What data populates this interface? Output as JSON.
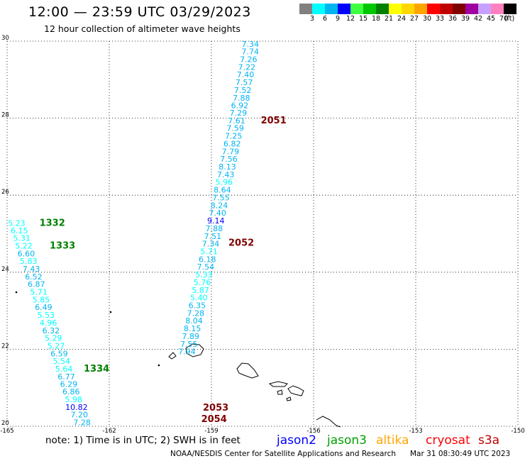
{
  "title": "12:00 — 23:59 UTC 03/29/2023",
  "subtitle": "12 hour collection of altimeter wave heights",
  "color_scale": {
    "unit": "(ft)",
    "bins": [
      {
        "label": "3",
        "color": "#808080"
      },
      {
        "label": "6",
        "color": "#00ffff"
      },
      {
        "label": "9",
        "color": "#00b4f0"
      },
      {
        "label": "12",
        "color": "#0000ff"
      },
      {
        "label": "15",
        "color": "#40ff40"
      },
      {
        "label": "18",
        "color": "#00c800"
      },
      {
        "label": "21",
        "color": "#008000"
      },
      {
        "label": "24",
        "color": "#ffff00"
      },
      {
        "label": "27",
        "color": "#ffd700"
      },
      {
        "label": "30",
        "color": "#ffa500"
      },
      {
        "label": "33",
        "color": "#ff0000"
      },
      {
        "label": "36",
        "color": "#c00000"
      },
      {
        "label": "39",
        "color": "#800000"
      },
      {
        "label": "42",
        "color": "#a000a0"
      },
      {
        "label": "45",
        "color": "#c8a0ff"
      },
      {
        "label": "70",
        "color": "#ff80c0"
      },
      {
        "label": "",
        "color": "#000000"
      }
    ]
  },
  "axes": {
    "lon_ticks": [
      "-165",
      "-162",
      "-159",
      "-156",
      "-153",
      "-150"
    ],
    "lat_ticks": [
      "20",
      "22",
      "24",
      "26",
      "28",
      "30"
    ],
    "lon_range": [
      -165,
      -150
    ],
    "lat_range": [
      20,
      30
    ],
    "grid": true
  },
  "tracks": [
    {
      "id": "west",
      "points": [
        {
          "lon": -164.72,
          "lat": 25.28,
          "v": "5.23",
          "c": "#00ffff"
        },
        {
          "lon": -164.64,
          "lat": 25.08,
          "v": "6.15",
          "c": "#00ffff"
        },
        {
          "lon": -164.57,
          "lat": 24.89,
          "v": "5.31",
          "c": "#00ffff"
        },
        {
          "lon": -164.51,
          "lat": 24.69,
          "v": "5.22",
          "c": "#00ffff"
        },
        {
          "lon": -164.44,
          "lat": 24.48,
          "v": "6.60",
          "c": "#00b4f0"
        },
        {
          "lon": -164.37,
          "lat": 24.29,
          "v": "5.83",
          "c": "#00ffff"
        },
        {
          "lon": -164.29,
          "lat": 24.09,
          "v": "7.43",
          "c": "#00b4f0"
        },
        {
          "lon": -164.22,
          "lat": 23.89,
          "v": "6.52",
          "c": "#00b4f0"
        },
        {
          "lon": -164.14,
          "lat": 23.69,
          "v": "6.87",
          "c": "#00b4f0"
        },
        {
          "lon": -164.07,
          "lat": 23.49,
          "v": "5.71",
          "c": "#00ffff"
        },
        {
          "lon": -164.0,
          "lat": 23.29,
          "v": "5.85",
          "c": "#00ffff"
        },
        {
          "lon": -163.93,
          "lat": 23.09,
          "v": "6.49",
          "c": "#00b4f0"
        },
        {
          "lon": -163.86,
          "lat": 22.89,
          "v": "5.53",
          "c": "#00ffff"
        },
        {
          "lon": -163.79,
          "lat": 22.69,
          "v": "4.96",
          "c": "#00ffff"
        },
        {
          "lon": -163.71,
          "lat": 22.49,
          "v": "6.32",
          "c": "#00b4f0"
        },
        {
          "lon": -163.64,
          "lat": 22.29,
          "v": "5.29",
          "c": "#00ffff"
        },
        {
          "lon": -163.56,
          "lat": 22.09,
          "v": "5.27",
          "c": "#00ffff"
        },
        {
          "lon": -163.47,
          "lat": 21.89,
          "v": "6.59",
          "c": "#00b4f0"
        },
        {
          "lon": -163.4,
          "lat": 21.69,
          "v": "5.54",
          "c": "#00ffff"
        },
        {
          "lon": -163.33,
          "lat": 21.49,
          "v": "5.64",
          "c": "#00ffff"
        },
        {
          "lon": -163.26,
          "lat": 21.29,
          "v": "6.77",
          "c": "#00b4f0"
        },
        {
          "lon": -163.19,
          "lat": 21.1,
          "v": "6.29",
          "c": "#00b4f0"
        },
        {
          "lon": -163.12,
          "lat": 20.9,
          "v": "6.86",
          "c": "#00b4f0"
        },
        {
          "lon": -163.05,
          "lat": 20.7,
          "v": "5.98",
          "c": "#00ffff"
        },
        {
          "lon": -162.96,
          "lat": 20.5,
          "v": "10.82",
          "c": "#0000ff"
        },
        {
          "lon": -162.88,
          "lat": 20.3,
          "v": "7.20",
          "c": "#00b4f0"
        },
        {
          "lon": -162.8,
          "lat": 20.1,
          "v": "7.28",
          "c": "#00b4f0"
        }
      ]
    },
    {
      "id": "east",
      "points": [
        {
          "lon": -157.86,
          "lat": 29.93,
          "v": "7.34",
          "c": "#00b4f0"
        },
        {
          "lon": -157.86,
          "lat": 29.73,
          "v": "7.74",
          "c": "#00b4f0"
        },
        {
          "lon": -157.91,
          "lat": 29.53,
          "v": "7.26",
          "c": "#00b4f0"
        },
        {
          "lon": -157.96,
          "lat": 29.33,
          "v": "7.22",
          "c": "#00b4f0"
        },
        {
          "lon": -158.0,
          "lat": 29.13,
          "v": "7.40",
          "c": "#00b4f0"
        },
        {
          "lon": -158.04,
          "lat": 28.93,
          "v": "7.57",
          "c": "#00b4f0"
        },
        {
          "lon": -158.08,
          "lat": 28.73,
          "v": "7.52",
          "c": "#00b4f0"
        },
        {
          "lon": -158.12,
          "lat": 28.53,
          "v": "7.88",
          "c": "#00b4f0"
        },
        {
          "lon": -158.17,
          "lat": 28.33,
          "v": "6.92",
          "c": "#00b4f0"
        },
        {
          "lon": -158.21,
          "lat": 28.14,
          "v": "7.29",
          "c": "#00b4f0"
        },
        {
          "lon": -158.26,
          "lat": 27.94,
          "v": "7.61",
          "c": "#00b4f0"
        },
        {
          "lon": -158.3,
          "lat": 27.74,
          "v": "7.59",
          "c": "#00b4f0"
        },
        {
          "lon": -158.35,
          "lat": 27.54,
          "v": "7.25",
          "c": "#00b4f0"
        },
        {
          "lon": -158.39,
          "lat": 27.34,
          "v": "6.82",
          "c": "#00b4f0"
        },
        {
          "lon": -158.44,
          "lat": 27.14,
          "v": "7.79",
          "c": "#00b4f0"
        },
        {
          "lon": -158.49,
          "lat": 26.94,
          "v": "7.56",
          "c": "#00b4f0"
        },
        {
          "lon": -158.53,
          "lat": 26.74,
          "v": "8.13",
          "c": "#00b4f0"
        },
        {
          "lon": -158.58,
          "lat": 26.54,
          "v": "7.43",
          "c": "#00b4f0"
        },
        {
          "lon": -158.63,
          "lat": 26.34,
          "v": "5.96",
          "c": "#00ffff"
        },
        {
          "lon": -158.68,
          "lat": 26.14,
          "v": "8.64",
          "c": "#00b4f0"
        },
        {
          "lon": -158.72,
          "lat": 25.94,
          "v": "7.55",
          "c": "#00b4f0"
        },
        {
          "lon": -158.77,
          "lat": 25.74,
          "v": "8.24",
          "c": "#00b4f0"
        },
        {
          "lon": -158.82,
          "lat": 25.54,
          "v": "7.40",
          "c": "#00b4f0"
        },
        {
          "lon": -158.87,
          "lat": 25.34,
          "v": "9.14",
          "c": "#0000ff"
        },
        {
          "lon": -158.92,
          "lat": 25.14,
          "v": "7.88",
          "c": "#00b4f0"
        },
        {
          "lon": -158.96,
          "lat": 24.94,
          "v": "7.51",
          "c": "#00b4f0"
        },
        {
          "lon": -159.02,
          "lat": 24.74,
          "v": "7.34",
          "c": "#00b4f0"
        },
        {
          "lon": -159.07,
          "lat": 24.54,
          "v": "5.71",
          "c": "#00ffff"
        },
        {
          "lon": -159.12,
          "lat": 24.34,
          "v": "6.18",
          "c": "#00b4f0"
        },
        {
          "lon": -159.17,
          "lat": 24.14,
          "v": "7.54",
          "c": "#00b4f0"
        },
        {
          "lon": -159.22,
          "lat": 23.94,
          "v": "5.33",
          "c": "#00ffff"
        },
        {
          "lon": -159.27,
          "lat": 23.74,
          "v": "5.76",
          "c": "#00ffff"
        },
        {
          "lon": -159.32,
          "lat": 23.54,
          "v": "5.87",
          "c": "#00ffff"
        },
        {
          "lon": -159.37,
          "lat": 23.34,
          "v": "5.40",
          "c": "#00ffff"
        },
        {
          "lon": -159.42,
          "lat": 23.14,
          "v": "6.35",
          "c": "#00b4f0"
        },
        {
          "lon": -159.46,
          "lat": 22.94,
          "v": "7.28",
          "c": "#00b4f0"
        },
        {
          "lon": -159.51,
          "lat": 22.74,
          "v": "8.04",
          "c": "#00b4f0"
        },
        {
          "lon": -159.56,
          "lat": 22.54,
          "v": "8.15",
          "c": "#00b4f0"
        },
        {
          "lon": -159.61,
          "lat": 22.34,
          "v": "7.89",
          "c": "#00b4f0"
        },
        {
          "lon": -159.66,
          "lat": 22.14,
          "v": "7.55",
          "c": "#00b4f0"
        },
        {
          "lon": -159.72,
          "lat": 21.94,
          "v": "7.94",
          "c": "#00b4f0"
        }
      ]
    }
  ],
  "pass_labels": [
    {
      "text": "1332",
      "lon": -164.05,
      "lat": 25.28,
      "c": "#008000"
    },
    {
      "text": "1333",
      "lon": -163.75,
      "lat": 24.69,
      "c": "#008000"
    },
    {
      "text": "1334",
      "lon": -162.75,
      "lat": 21.49,
      "c": "#008000"
    },
    {
      "text": "2051",
      "lon": -157.55,
      "lat": 27.94,
      "c": "#800000"
    },
    {
      "text": "2052",
      "lon": -158.5,
      "lat": 24.76,
      "c": "#800000"
    },
    {
      "text": "2053",
      "lon": -159.25,
      "lat": 20.48,
      "c": "#800000"
    },
    {
      "text": "2054",
      "lon": -159.3,
      "lat": 20.18,
      "c": "#800000"
    }
  ],
  "legend": {
    "note": "note: 1) Time is in UTC; 2) SWH is in feet",
    "satellites": [
      {
        "name": "jason2",
        "color": "#0000ff"
      },
      {
        "name": "jason3",
        "color": "#00a000"
      },
      {
        "name": "altika",
        "color": "#ffa500"
      },
      {
        "name": "cryosat",
        "color": "#ff0000"
      },
      {
        "name": "s3a",
        "color": "#c00000"
      }
    ]
  },
  "footer": {
    "credit": "NOAA/NESDIS Center for Satellite Applications and Research",
    "timestamp": "Mar 31 08:30:49 UTC 2023"
  }
}
